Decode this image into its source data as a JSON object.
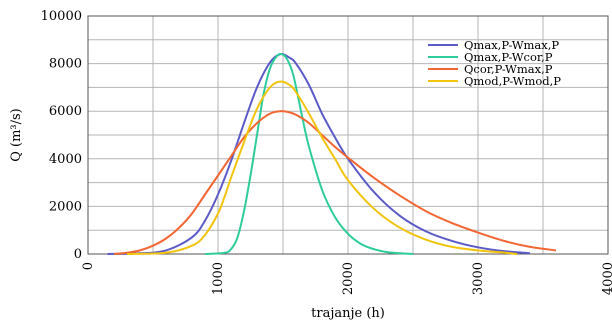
{
  "chart_data": {
    "type": "line",
    "xlabel": "trajanje (h)",
    "ylabel": "Q (m³/s)",
    "xlim": [
      0,
      4000
    ],
    "ylim": [
      0,
      10000
    ],
    "x_ticks": [
      "0",
      "1000",
      "2000",
      "3000",
      "4000"
    ],
    "y_ticks": [
      "0",
      "2000",
      "4000",
      "6000",
      "8000",
      "10000"
    ],
    "x_tick_values": [
      0,
      1000,
      2000,
      3000,
      4000
    ],
    "y_tick_values": [
      0,
      2000,
      4000,
      6000,
      8000,
      10000
    ],
    "grid": true,
    "legend_position": "top-right",
    "series": [
      {
        "name": "Qmax,P-Wmax,P",
        "color": "#5b5bc8",
        "x": [
          150,
          400,
          600,
          800,
          900,
          1000,
          1100,
          1200,
          1300,
          1400,
          1480,
          1550,
          1600,
          1700,
          1800,
          1900,
          2000,
          2200,
          2400,
          2600,
          2800,
          3000,
          3200,
          3400
        ],
        "y": [
          0,
          30,
          150,
          700,
          1400,
          2500,
          3900,
          5500,
          7000,
          8050,
          8400,
          8250,
          8000,
          7100,
          5900,
          4900,
          4000,
          2600,
          1600,
          950,
          550,
          280,
          120,
          30
        ]
      },
      {
        "name": "Qmax,P-Wcor,P",
        "color": "#2ecc9a",
        "x": [
          900,
          1050,
          1100,
          1150,
          1200,
          1250,
          1300,
          1350,
          1400,
          1450,
          1490,
          1530,
          1580,
          1650,
          1700,
          1800,
          1900,
          2000,
          2100,
          2200,
          2300,
          2400,
          2500
        ],
        "y": [
          0,
          50,
          200,
          700,
          1800,
          3300,
          5000,
          6700,
          7800,
          8300,
          8400,
          8200,
          7500,
          5700,
          4500,
          2700,
          1550,
          850,
          420,
          200,
          80,
          30,
          0
        ]
      },
      {
        "name": "Qcor,P-Wmax,P",
        "color": "#f26633",
        "x": [
          200,
          300,
          400,
          500,
          600,
          700,
          800,
          900,
          1000,
          1100,
          1200,
          1300,
          1400,
          1480,
          1550,
          1600,
          1700,
          1800,
          1900,
          2000,
          2200,
          2400,
          2600,
          2800,
          3000,
          3200,
          3400,
          3600
        ],
        "y": [
          0,
          50,
          150,
          350,
          650,
          1100,
          1700,
          2500,
          3300,
          4100,
          4900,
          5500,
          5900,
          6000,
          5950,
          5850,
          5500,
          5000,
          4500,
          4050,
          3200,
          2450,
          1800,
          1300,
          900,
          550,
          300,
          150
        ]
      },
      {
        "name": "Qmod,P-Wmod,P",
        "color": "#f2c40d",
        "x": [
          300,
          600,
          800,
          900,
          1000,
          1050,
          1100,
          1200,
          1300,
          1400,
          1480,
          1550,
          1600,
          1700,
          1800,
          1900,
          2000,
          2200,
          2400,
          2600,
          2800,
          3000,
          3200,
          3300
        ],
        "y": [
          0,
          50,
          350,
          800,
          1700,
          2400,
          3200,
          4700,
          6100,
          7000,
          7250,
          7100,
          6800,
          5900,
          4900,
          4000,
          3100,
          1900,
          1100,
          600,
          300,
          150,
          60,
          0
        ]
      }
    ]
  }
}
